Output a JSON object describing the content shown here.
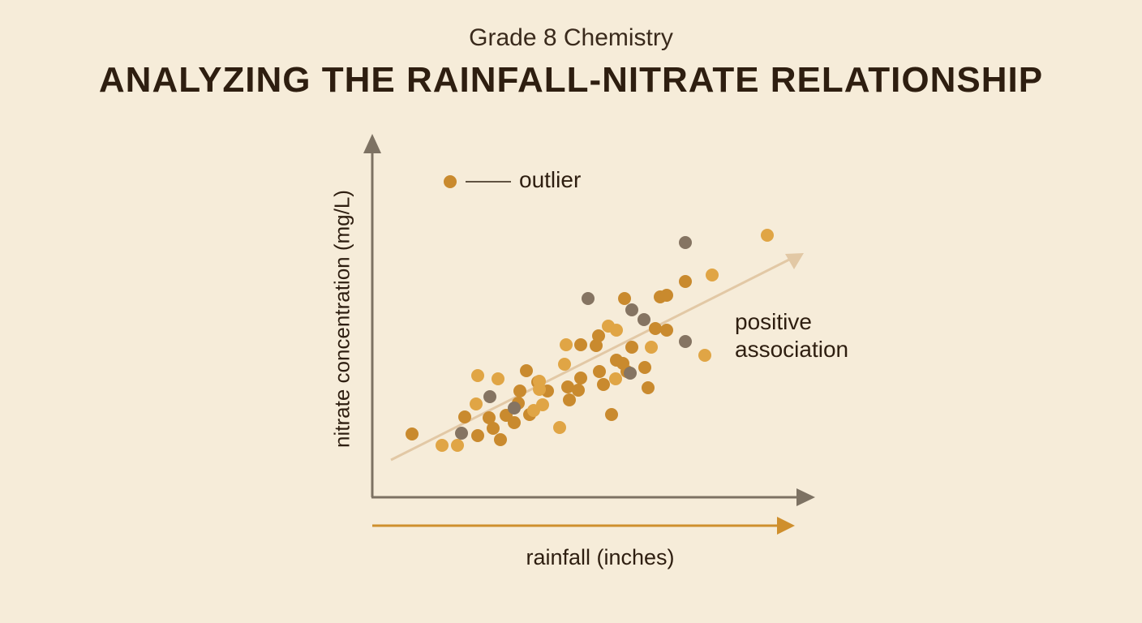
{
  "header": {
    "subtitle": "Grade 8 Chemistry",
    "title": "ANALYZING THE RAINFALL-NITRATE RELATIONSHIP"
  },
  "chart_data": {
    "type": "scatter",
    "xlabel": "rainfall (inches)",
    "ylabel": "nitrate concentration (mg/L)",
    "legend": {
      "marker_label": "outlier",
      "placement": "top-left"
    },
    "annotation": {
      "line1": "positive",
      "line2": "association"
    },
    "axis_ticks": "none",
    "grid": false,
    "colors": {
      "dark_orange": "#c98a2e",
      "light_orange": "#e0a545",
      "gray": "#857462",
      "axis": "#7d7263",
      "trend": "#e2c8a5",
      "x_arrow": "#cf8f2d",
      "text": "#2e1e10"
    },
    "series": [
      {
        "color_key": "dark_orange",
        "points": [
          [
            508,
            535
          ],
          [
            573,
            514
          ],
          [
            589,
            537
          ],
          [
            603,
            515
          ],
          [
            608,
            528
          ],
          [
            617,
            542
          ],
          [
            624,
            512
          ],
          [
            634,
            521
          ],
          [
            639,
            497
          ],
          [
            641,
            482
          ],
          [
            649,
            457
          ],
          [
            653,
            511
          ],
          [
            663,
            471
          ],
          [
            675,
            482
          ],
          [
            700,
            477
          ],
          [
            702,
            493
          ],
          [
            713,
            481
          ],
          [
            716,
            466
          ],
          [
            716,
            425
          ],
          [
            735,
            426
          ],
          [
            738,
            414
          ],
          [
            739,
            458
          ],
          [
            744,
            474
          ],
          [
            754,
            511
          ],
          [
            760,
            444
          ],
          [
            768,
            448
          ],
          [
            770,
            368
          ],
          [
            773,
            458
          ],
          [
            779,
            428
          ],
          [
            795,
            453
          ],
          [
            799,
            478
          ],
          [
            808,
            405
          ],
          [
            814,
            366
          ],
          [
            822,
            364
          ],
          [
            822,
            407
          ],
          [
            845,
            347
          ]
        ]
      },
      {
        "color_key": "light_orange",
        "points": [
          [
            545,
            549
          ],
          [
            564,
            549
          ],
          [
            587,
            498
          ],
          [
            589,
            463
          ],
          [
            614,
            467
          ],
          [
            658,
            506
          ],
          [
            665,
            470
          ],
          [
            669,
            499
          ],
          [
            665,
            480
          ],
          [
            690,
            527
          ],
          [
            696,
            449
          ],
          [
            698,
            425
          ],
          [
            750,
            402
          ],
          [
            760,
            407
          ],
          [
            759,
            467
          ],
          [
            803,
            428
          ],
          [
            869,
            438
          ],
          [
            878,
            339
          ],
          [
            946,
            290
          ]
        ]
      },
      {
        "color_key": "gray",
        "points": [
          [
            569,
            534
          ],
          [
            604,
            489
          ],
          [
            634,
            503
          ],
          [
            725,
            368
          ],
          [
            779,
            382
          ],
          [
            777,
            460
          ],
          [
            794,
            394
          ],
          [
            845,
            299
          ],
          [
            845,
            421
          ]
        ]
      }
    ]
  }
}
